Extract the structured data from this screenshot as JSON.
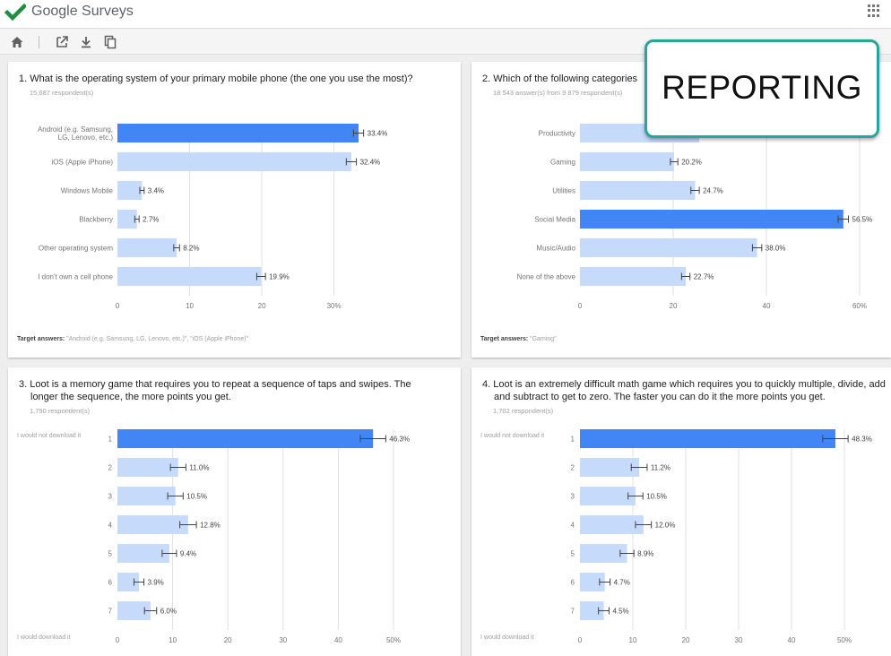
{
  "app": {
    "brand": "Google Surveys",
    "icons": [
      "check-logo-icon",
      "apps-grid-icon",
      "home-icon",
      "open-in-new-icon",
      "download-icon",
      "copy-icon"
    ],
    "colors": {
      "highlight_bar": "#4285f4",
      "bar": "#c6dafc",
      "check_logo": "#1e8e3e",
      "callout_border": "#26a69a"
    }
  },
  "callout": {
    "label": "REPORTING"
  },
  "questions": [
    {
      "number": "1.",
      "title_lines": [
        "What is the operating system of your primary mobile phone (the one you use the most)?"
      ],
      "subtitle": "15,687 respondent(s)",
      "target_label": "Target answers:",
      "target_value": "\"Android (e.g. Samsung, LG, Lenovo, etc.)\", \"iOS (Apple iPhone)\"",
      "chart_data": {
        "type": "bar",
        "orientation": "horizontal",
        "categories": [
          [
            "Android (e.g. Samsung,",
            "LG, Lenovo, etc.)"
          ],
          [
            "iOS (Apple iPhone)"
          ],
          [
            "Windows Mobile"
          ],
          [
            "Blackberry"
          ],
          [
            "Other operating system"
          ],
          [
            "I don't own a cell phone"
          ]
        ],
        "values": [
          33.4,
          32.4,
          3.4,
          2.7,
          8.2,
          19.9
        ],
        "value_labels": [
          "33.4%",
          "32.4%",
          "3.4%",
          "2.7%",
          "8.2%",
          "19.9%"
        ],
        "error_bars": [
          0.7,
          0.7,
          0.3,
          0.3,
          0.4,
          0.6
        ],
        "highlighted": [
          0
        ],
        "xlim": [
          0,
          37
        ],
        "ticks": [
          0,
          10,
          20,
          30
        ],
        "tick_labels": [
          "0",
          "10",
          "20",
          "30%"
        ],
        "scale_labels": null
      }
    },
    {
      "number": "2.",
      "title_lines": [
        "Which of the following categories"
      ],
      "subtitle": "18 543 answer(s) from 9 879 respondent(s)",
      "target_label": "Target answers:",
      "target_value": "\"Gaming\"",
      "chart_data": {
        "type": "bar",
        "orientation": "horizontal",
        "categories": [
          [
            "Productivity"
          ],
          [
            "Gaming"
          ],
          [
            "Utilities"
          ],
          [
            "Social Media"
          ],
          [
            "Music/Audio"
          ],
          [
            "None of the above"
          ]
        ],
        "values": [
          25.6,
          20.2,
          24.7,
          56.5,
          38.0,
          22.7
        ],
        "value_labels": [
          "",
          "20.2%",
          "24.7%",
          "56.5%",
          "38.0%",
          "22.7%"
        ],
        "error_bars": [
          1.0,
          0.8,
          0.9,
          1.1,
          1.0,
          0.9
        ],
        "highlighted": [
          3
        ],
        "xlim": [
          0,
          60
        ],
        "ticks": [
          0,
          20,
          40,
          60
        ],
        "tick_labels": [
          "0",
          "20",
          "40",
          "60%"
        ],
        "scale_labels": null
      }
    },
    {
      "number": "3.",
      "title_lines": [
        "Loot is a memory game that requires you to repeat a sequence of taps and swipes. The",
        "longer the sequence, the more points you get."
      ],
      "subtitle": "1,790 respondent(s)",
      "chart_data": {
        "type": "bar",
        "orientation": "horizontal",
        "categories": [
          [
            "1"
          ],
          [
            "2"
          ],
          [
            "3"
          ],
          [
            "4"
          ],
          [
            "5"
          ],
          [
            "6"
          ],
          [
            "7"
          ]
        ],
        "values": [
          46.3,
          11.0,
          10.5,
          12.8,
          9.4,
          3.9,
          6.0
        ],
        "value_labels": [
          "46.3%",
          "11.0%",
          "10.5%",
          "12.8%",
          "9.4%",
          "3.9%",
          "6.0%"
        ],
        "error_bars": [
          2.3,
          1.4,
          1.4,
          1.5,
          1.3,
          0.9,
          1.1
        ],
        "highlighted": [
          0
        ],
        "xlim": [
          0,
          50
        ],
        "ticks": [
          0,
          10,
          20,
          30,
          40,
          50
        ],
        "tick_labels": [
          "0",
          "10",
          "20",
          "30",
          "40",
          "50%"
        ],
        "scale_labels": [
          "I would not download it",
          "I would download it"
        ]
      }
    },
    {
      "number": "4.",
      "title_lines": [
        "Loot is an extremely difficult math game which requires you to quickly multiple, divide, add",
        "and subtract to get to zero. The faster you can do it the more points you get."
      ],
      "subtitle": "1,702 respondent(s)",
      "chart_data": {
        "type": "bar",
        "orientation": "horizontal",
        "categories": [
          [
            "1"
          ],
          [
            "2"
          ],
          [
            "3"
          ],
          [
            "4"
          ],
          [
            "5"
          ],
          [
            "6"
          ],
          [
            "7"
          ]
        ],
        "values": [
          48.3,
          11.2,
          10.5,
          12.0,
          8.9,
          4.7,
          4.5
        ],
        "value_labels": [
          "48.3%",
          "11.2%",
          "10.5%",
          "12.0%",
          "8.9%",
          "4.7%",
          "4.5%"
        ],
        "error_bars": [
          2.4,
          1.5,
          1.4,
          1.5,
          1.3,
          1.0,
          1.0
        ],
        "highlighted": [
          0
        ],
        "xlim": [
          0,
          50
        ],
        "ticks": [
          0,
          10,
          20,
          30,
          40,
          50
        ],
        "tick_labels": [
          "0",
          "10",
          "20",
          "30",
          "40",
          "50%"
        ],
        "scale_labels": [
          "I would not download it",
          "I would download it"
        ]
      }
    }
  ]
}
